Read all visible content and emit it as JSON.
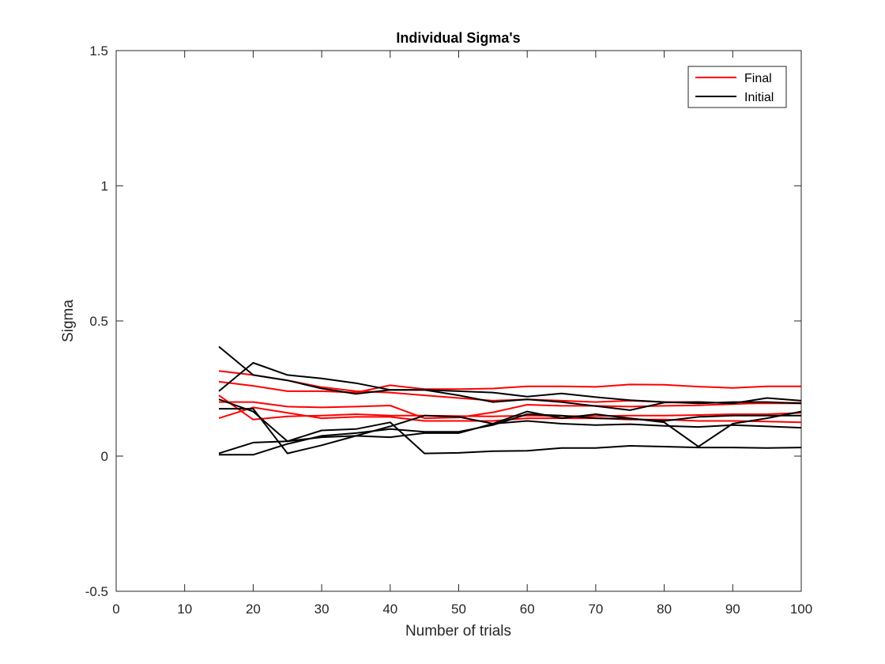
{
  "chart_data": {
    "type": "line",
    "title": "Individual Sigma's",
    "xlabel": "Number of trials",
    "ylabel": "Sigma",
    "xlim": [
      0,
      100
    ],
    "ylim": [
      -0.5,
      1.5
    ],
    "xticks": [
      0,
      10,
      20,
      30,
      40,
      50,
      60,
      70,
      80,
      90,
      100
    ],
    "yticks": [
      -0.5,
      0,
      0.5,
      1,
      1.5
    ],
    "ytick_labels": [
      "-0.5",
      "0",
      "0.5",
      "1",
      "1.5"
    ],
    "grid": false,
    "legend_position": "top-right",
    "x": [
      15,
      20,
      25,
      30,
      35,
      40,
      45,
      50,
      55,
      60,
      65,
      70,
      75,
      80,
      85,
      90,
      95,
      100
    ],
    "series": [
      {
        "name": "Final",
        "color": "#ff0000",
        "values": [
          0.315,
          0.3,
          0.28,
          0.255,
          0.24,
          0.235,
          0.225,
          0.215,
          0.205,
          0.21,
          0.205,
          0.2,
          0.205,
          0.2,
          0.2,
          0.195,
          0.195,
          0.195
        ]
      },
      {
        "name": "",
        "color": "#ff0000",
        "values": [
          0.275,
          0.26,
          0.24,
          0.24,
          0.235,
          0.262,
          0.248,
          0.248,
          0.25,
          0.258,
          0.258,
          0.256,
          0.265,
          0.264,
          0.257,
          0.252,
          0.258,
          0.258
        ]
      },
      {
        "name": "",
        "color": "#ff0000",
        "values": [
          0.2,
          0.2,
          0.183,
          0.18,
          0.183,
          0.187,
          0.14,
          0.143,
          0.162,
          0.19,
          0.186,
          0.186,
          0.183,
          0.186,
          0.188,
          0.192,
          0.197,
          0.197
        ]
      },
      {
        "name": "",
        "color": "#ff0000",
        "values": [
          0.225,
          0.135,
          0.147,
          0.15,
          0.155,
          0.15,
          0.15,
          0.148,
          0.147,
          0.15,
          0.148,
          0.148,
          0.15,
          0.15,
          0.152,
          0.155,
          0.155,
          0.16
        ]
      },
      {
        "name": "",
        "color": "#ff0000",
        "values": [
          0.14,
          0.18,
          0.16,
          0.14,
          0.145,
          0.145,
          0.13,
          0.13,
          0.13,
          0.14,
          0.14,
          0.14,
          0.135,
          0.135,
          0.13,
          0.13,
          0.128,
          0.125
        ]
      },
      {
        "name": "Initial",
        "color": "#000000",
        "values": [
          0.405,
          0.3,
          0.28,
          0.25,
          0.23,
          0.245,
          0.245,
          0.24,
          0.235,
          0.22,
          0.232,
          0.218,
          0.207,
          0.2,
          0.195,
          0.2,
          0.2,
          0.195
        ]
      },
      {
        "name": "",
        "color": "#000000",
        "values": [
          0.24,
          0.345,
          0.3,
          0.287,
          0.27,
          0.245,
          0.245,
          0.225,
          0.2,
          0.21,
          0.2,
          0.185,
          0.17,
          0.198,
          0.2,
          0.195,
          0.215,
          0.205
        ]
      },
      {
        "name": "",
        "color": "#000000",
        "values": [
          0.175,
          0.175,
          0.01,
          0.04,
          0.075,
          0.11,
          0.15,
          0.145,
          0.12,
          0.165,
          0.14,
          0.155,
          0.14,
          0.125,
          0.035,
          0.12,
          0.14,
          0.165
        ]
      },
      {
        "name": "",
        "color": "#000000",
        "values": [
          0.21,
          0.165,
          0.055,
          0.095,
          0.1,
          0.125,
          0.01,
          0.012,
          0.018,
          0.02,
          0.03,
          0.03,
          0.038,
          0.035,
          0.032,
          0.032,
          0.03,
          0.032
        ]
      },
      {
        "name": "",
        "color": "#000000",
        "values": [
          0.01,
          0.05,
          0.055,
          0.07,
          0.075,
          0.07,
          0.085,
          0.085,
          0.12,
          0.13,
          0.12,
          0.115,
          0.118,
          0.112,
          0.108,
          0.115,
          0.11,
          0.105
        ]
      },
      {
        "name": "",
        "color": "#000000",
        "values": [
          0.005,
          0.005,
          0.045,
          0.075,
          0.085,
          0.1,
          0.09,
          0.09,
          0.115,
          0.155,
          0.15,
          0.14,
          0.138,
          0.13,
          0.145,
          0.15,
          0.15,
          0.15
        ]
      }
    ]
  }
}
